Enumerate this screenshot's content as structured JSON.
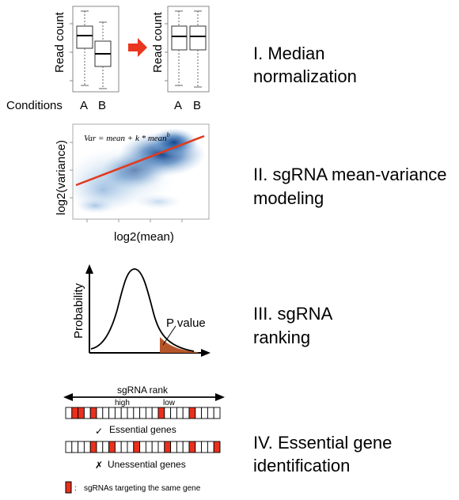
{
  "steps": [
    {
      "line1": "I. Median",
      "line2": "normalization"
    },
    {
      "line1": "II. sgRNA mean-variance",
      "line2": "modeling"
    },
    {
      "line1": "III. sgRNA",
      "line2": "ranking"
    },
    {
      "line1": "IV. Essential gene",
      "line2": "identification"
    }
  ],
  "panel1": {
    "ylabel": "Read count",
    "conditions_label": "Conditions",
    "cond_a": "A",
    "cond_b": "B",
    "arrow_color": "#e8361f"
  },
  "panel2": {
    "formula": "Var = mean + k * mean^b",
    "formula_main": "Var = mean + k * mean",
    "formula_exp": "b",
    "ylabel": "log2(variance)",
    "xlabel": "log2(mean)",
    "fit_color": "#e03a1e",
    "density_color": "#2a5fa0"
  },
  "panel3": {
    "ylabel": "Probability",
    "pvalue": "P value",
    "tail_color": "#b5562a"
  },
  "panel4": {
    "rank_label": "sgRNA rank",
    "high": "high",
    "low": "low",
    "essential": "Essential genes",
    "check": "✓",
    "unessential": "Unessential genes",
    "cross": "✗",
    "legend": "sgRNAs targeting the same gene",
    "legend_sep": ":",
    "hit_color": "#e8301c",
    "essential_hits": [
      1,
      2,
      4,
      15,
      20
    ],
    "unessential_hits": [
      4,
      7,
      11,
      16,
      20,
      24
    ],
    "cells": 25
  }
}
